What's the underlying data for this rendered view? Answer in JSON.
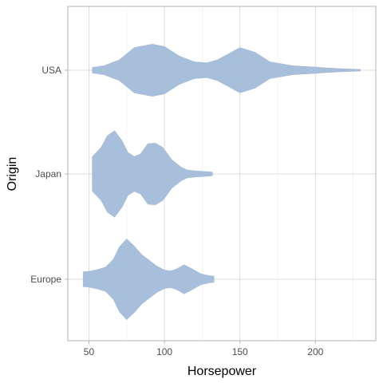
{
  "chart_data": {
    "type": "violin",
    "orientation": "horizontal",
    "title": "",
    "xlabel": "Horsepower",
    "ylabel": "Origin",
    "xlim": [
      36,
      240
    ],
    "x_ticks": [
      50,
      100,
      150,
      200
    ],
    "x_minor_ticks": [
      75,
      125,
      175,
      225
    ],
    "categories": [
      "Europe",
      "Japan",
      "USA"
    ],
    "grid": true,
    "legend": "none",
    "fill_color": "#a7bfdb",
    "series": [
      {
        "category": "USA",
        "range": [
          52,
          230
        ],
        "profile": [
          [
            52,
            0.06
          ],
          [
            60,
            0.1
          ],
          [
            70,
            0.22
          ],
          [
            80,
            0.48
          ],
          [
            92,
            0.55
          ],
          [
            100,
            0.5
          ],
          [
            110,
            0.3
          ],
          [
            120,
            0.18
          ],
          [
            128,
            0.16
          ],
          [
            135,
            0.22
          ],
          [
            150,
            0.48
          ],
          [
            160,
            0.38
          ],
          [
            170,
            0.18
          ],
          [
            185,
            0.1
          ],
          [
            200,
            0.07
          ],
          [
            215,
            0.04
          ],
          [
            225,
            0.03
          ],
          [
            230,
            0.02
          ]
        ]
      },
      {
        "category": "Japan",
        "range": [
          52,
          132
        ],
        "profile": [
          [
            52,
            0.36
          ],
          [
            58,
            0.56
          ],
          [
            62,
            0.8
          ],
          [
            67,
            0.91
          ],
          [
            72,
            0.7
          ],
          [
            76,
            0.45
          ],
          [
            80,
            0.37
          ],
          [
            84,
            0.42
          ],
          [
            89,
            0.64
          ],
          [
            94,
            0.65
          ],
          [
            99,
            0.56
          ],
          [
            105,
            0.3
          ],
          [
            111,
            0.15
          ],
          [
            115,
            0.09
          ],
          [
            120,
            0.07
          ],
          [
            125,
            0.06
          ],
          [
            130,
            0.05
          ],
          [
            132,
            0.04
          ]
        ]
      },
      {
        "category": "Europe",
        "range": [
          46,
          133
        ],
        "profile": [
          [
            46,
            0.16
          ],
          [
            50,
            0.17
          ],
          [
            56,
            0.21
          ],
          [
            61,
            0.26
          ],
          [
            66,
            0.42
          ],
          [
            70,
            0.68
          ],
          [
            75,
            0.85
          ],
          [
            80,
            0.7
          ],
          [
            85,
            0.52
          ],
          [
            90,
            0.4
          ],
          [
            95,
            0.28
          ],
          [
            100,
            0.2
          ],
          [
            104,
            0.18
          ],
          [
            108,
            0.22
          ],
          [
            113,
            0.31
          ],
          [
            118,
            0.23
          ],
          [
            124,
            0.12
          ],
          [
            130,
            0.08
          ],
          [
            133,
            0.07
          ]
        ]
      }
    ]
  }
}
